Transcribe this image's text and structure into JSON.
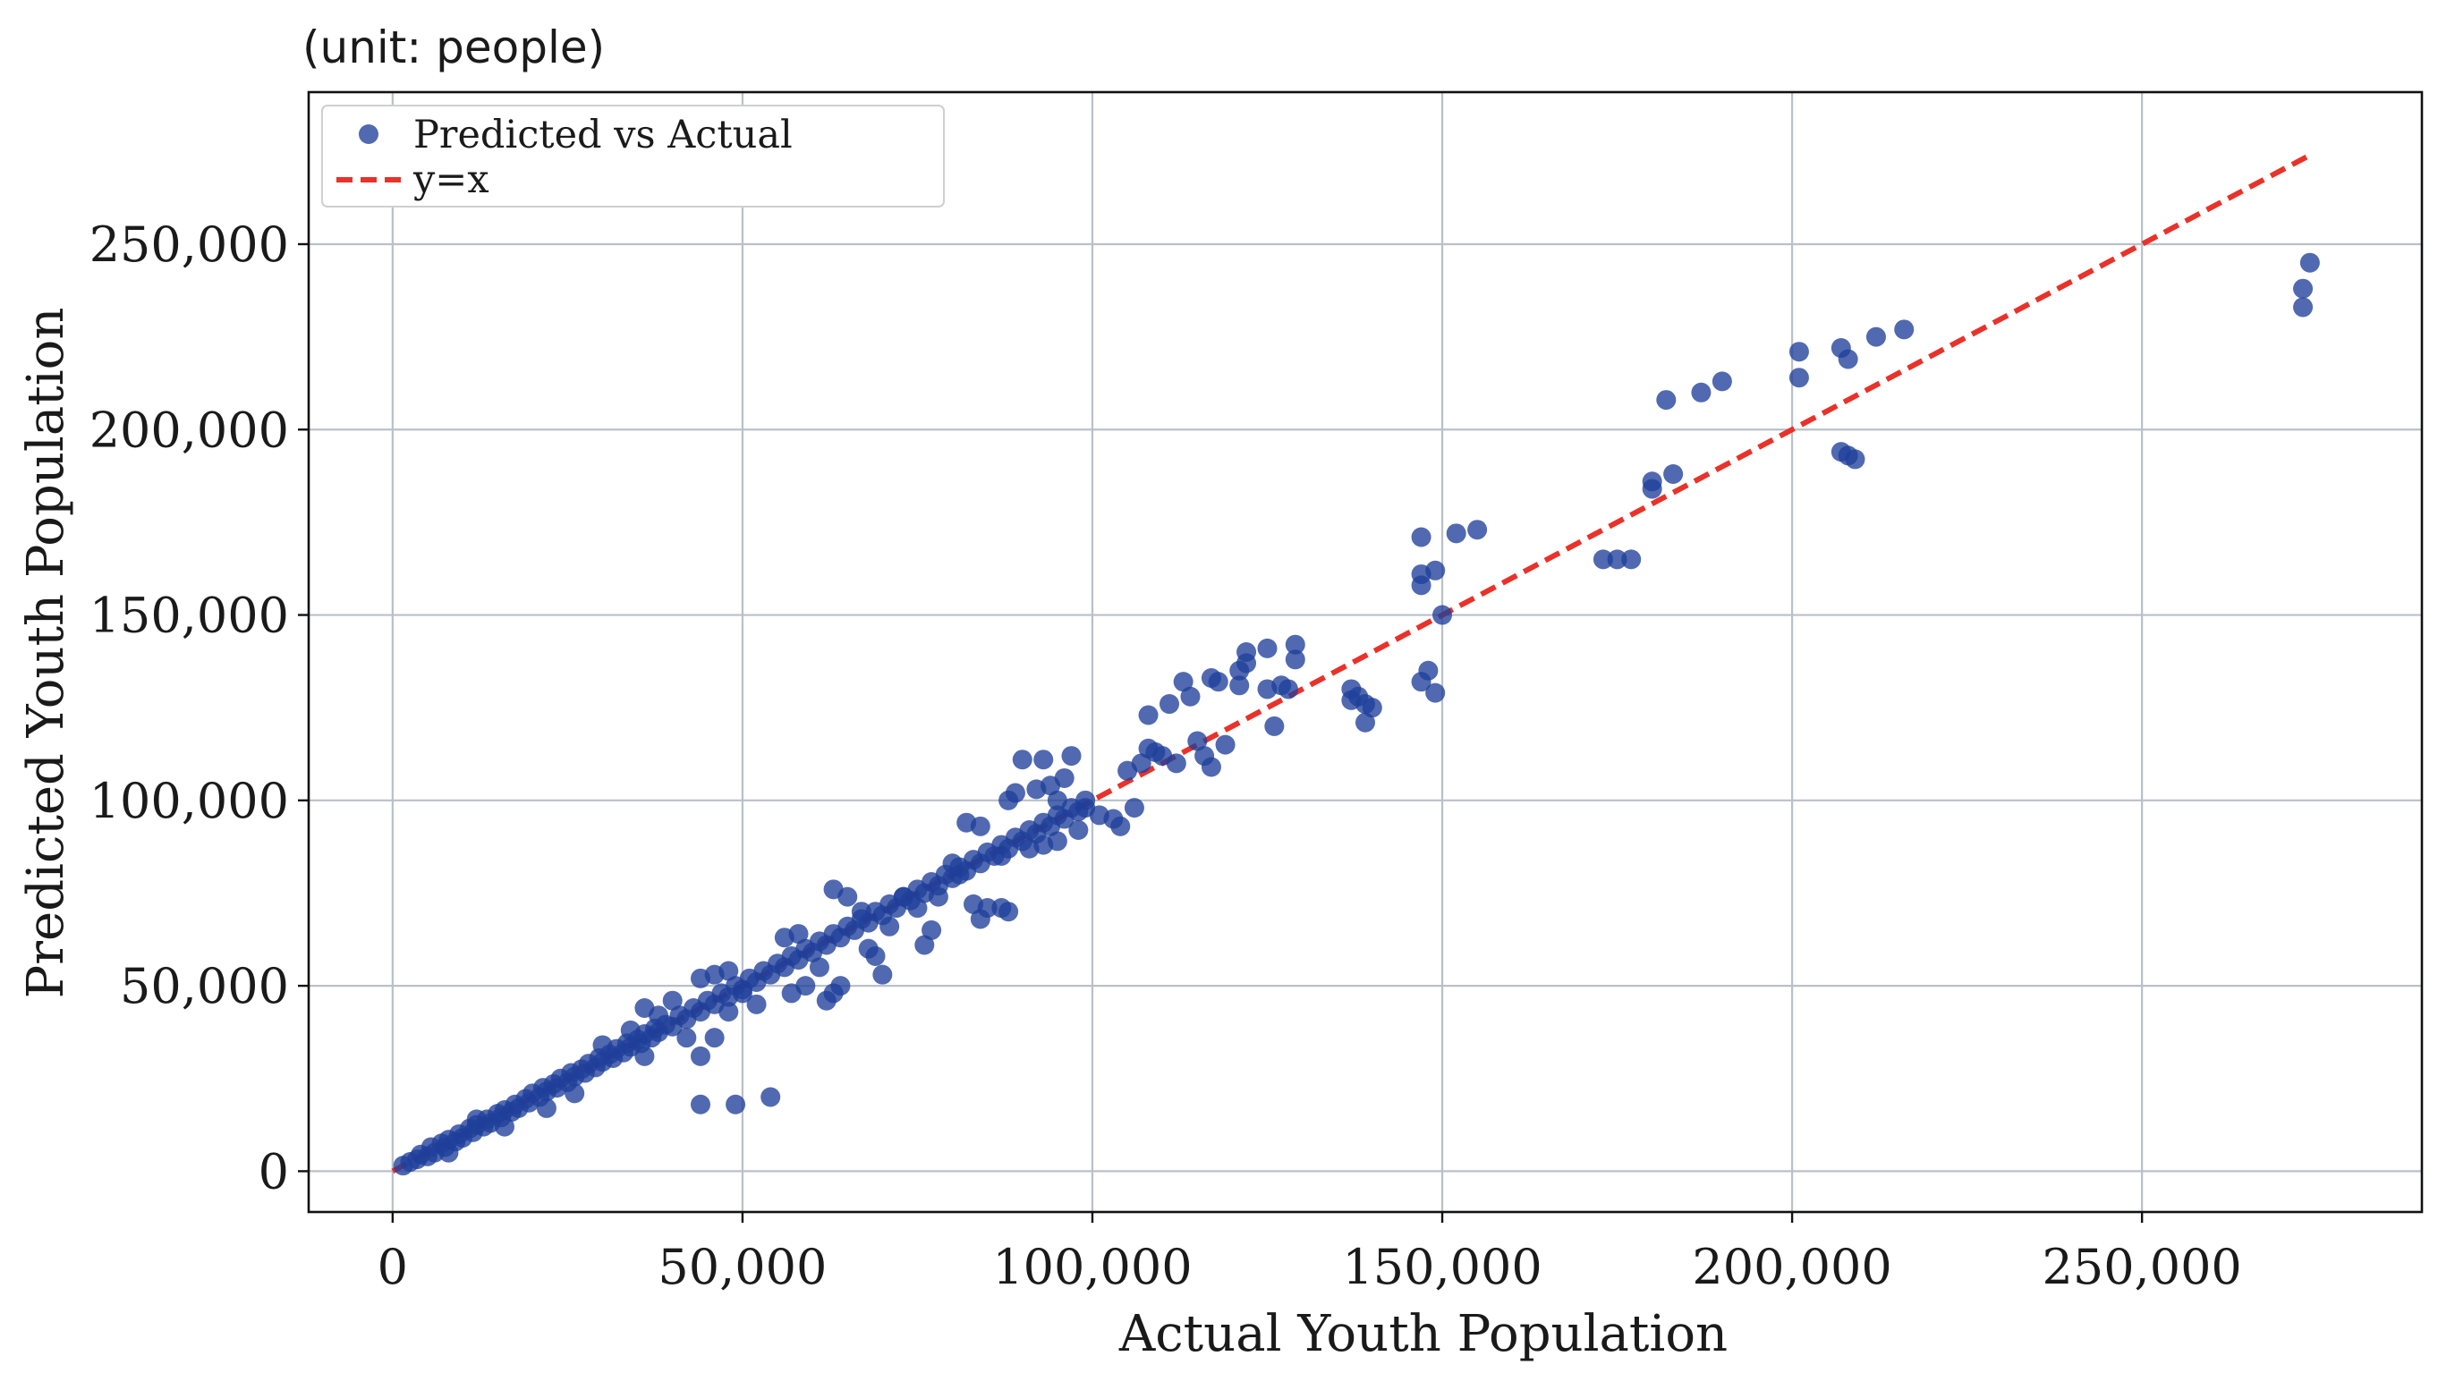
{
  "unit_note": "(unit: people)",
  "chart_data": {
    "type": "scatter",
    "title": "",
    "xlabel": "Actual Youth Population",
    "ylabel": "Predicted Youth Population",
    "xlim": [
      -12000,
      290000
    ],
    "ylim": [
      -11000,
      291000
    ],
    "grid": true,
    "legend_position": "top-left",
    "xticks": [
      0,
      50000,
      100000,
      150000,
      200000,
      250000
    ],
    "xtick_labels": [
      "0",
      "50,000",
      "100,000",
      "150,000",
      "200,000",
      "250,000"
    ],
    "yticks": [
      0,
      50000,
      100000,
      150000,
      200000,
      250000
    ],
    "ytick_labels": [
      "0",
      "50,000",
      "100,000",
      "150,000",
      "200,000",
      "250,000"
    ],
    "colors": {
      "points": "#1f3f9a",
      "reference_line": "#e8322a"
    },
    "series": [
      {
        "name": "Predicted vs Actual",
        "kind": "scatter",
        "points": [
          [
            1500,
            1500
          ],
          [
            2500,
            2500
          ],
          [
            3500,
            3200
          ],
          [
            4000,
            4500
          ],
          [
            5000,
            4000
          ],
          [
            5500,
            6500
          ],
          [
            6000,
            5000
          ],
          [
            7000,
            7500
          ],
          [
            7500,
            6500
          ],
          [
            8000,
            8500
          ],
          [
            9000,
            8000
          ],
          [
            9500,
            10000
          ],
          [
            10000,
            9000
          ],
          [
            11000,
            11500
          ],
          [
            11500,
            10500
          ],
          [
            12000,
            12500
          ],
          [
            13000,
            12000
          ],
          [
            13500,
            14000
          ],
          [
            14000,
            13000
          ],
          [
            15000,
            15500
          ],
          [
            15500,
            14500
          ],
          [
            16000,
            16500
          ],
          [
            17000,
            16000
          ],
          [
            17500,
            18000
          ],
          [
            18000,
            17000
          ],
          [
            19000,
            19500
          ],
          [
            19500,
            18500
          ],
          [
            20000,
            21000
          ],
          [
            21000,
            20000
          ],
          [
            21500,
            22500
          ],
          [
            22000,
            21500
          ],
          [
            23000,
            23500
          ],
          [
            23500,
            22500
          ],
          [
            24000,
            25000
          ],
          [
            25000,
            24000
          ],
          [
            25500,
            26500
          ],
          [
            26000,
            25500
          ],
          [
            27000,
            27500
          ],
          [
            27500,
            26500
          ],
          [
            28000,
            29000
          ],
          [
            29000,
            28000
          ],
          [
            29500,
            30500
          ],
          [
            30000,
            29500
          ],
          [
            31000,
            31500
          ],
          [
            31500,
            30500
          ],
          [
            32000,
            33000
          ],
          [
            33000,
            32000
          ],
          [
            33500,
            34500
          ],
          [
            34000,
            33500
          ],
          [
            35000,
            35500
          ],
          [
            35500,
            34500
          ],
          [
            36000,
            37000
          ],
          [
            37000,
            36000
          ],
          [
            37500,
            38500
          ],
          [
            38000,
            37500
          ],
          [
            39000,
            39500
          ],
          [
            40000,
            39000
          ],
          [
            41000,
            42000
          ],
          [
            42000,
            41000
          ],
          [
            43000,
            44000
          ],
          [
            44000,
            43000
          ],
          [
            45000,
            46000
          ],
          [
            46000,
            45000
          ],
          [
            47000,
            48000
          ],
          [
            48000,
            47000
          ],
          [
            49000,
            50000
          ],
          [
            50000,
            49000
          ],
          [
            51000,
            52000
          ],
          [
            52000,
            51000
          ],
          [
            53000,
            54000
          ],
          [
            54000,
            53000
          ],
          [
            55000,
            56000
          ],
          [
            56000,
            55000
          ],
          [
            57000,
            58000
          ],
          [
            58000,
            57000
          ],
          [
            59000,
            60000
          ],
          [
            60000,
            59000
          ],
          [
            61000,
            62000
          ],
          [
            62000,
            61000
          ],
          [
            63000,
            64000
          ],
          [
            64000,
            63000
          ],
          [
            65000,
            66000
          ],
          [
            66000,
            65000
          ],
          [
            67000,
            68000
          ],
          [
            68000,
            67000
          ],
          [
            69000,
            70000
          ],
          [
            70000,
            69000
          ],
          [
            71000,
            72000
          ],
          [
            72000,
            71000
          ],
          [
            73000,
            74000
          ],
          [
            74000,
            73000
          ],
          [
            75000,
            76000
          ],
          [
            76000,
            75000
          ],
          [
            77000,
            78000
          ],
          [
            78000,
            77000
          ],
          [
            79000,
            80000
          ],
          [
            80000,
            79000
          ],
          [
            81000,
            82000
          ],
          [
            82000,
            81000
          ],
          [
            83000,
            84000
          ],
          [
            84000,
            83000
          ],
          [
            85000,
            86000
          ],
          [
            86000,
            85000
          ],
          [
            87000,
            88000
          ],
          [
            88000,
            87000
          ],
          [
            89000,
            90000
          ],
          [
            90000,
            89000
          ],
          [
            91000,
            92000
          ],
          [
            92000,
            91000
          ],
          [
            93000,
            94000
          ],
          [
            94000,
            93000
          ],
          [
            95000,
            96000
          ],
          [
            96000,
            95000
          ],
          [
            97000,
            98000
          ],
          [
            98000,
            97000
          ],
          [
            99000,
            100000
          ],
          [
            8000,
            5000
          ],
          [
            12000,
            14000
          ],
          [
            16000,
            12000
          ],
          [
            22000,
            17000
          ],
          [
            26000,
            21000
          ],
          [
            30000,
            34000
          ],
          [
            34000,
            38000
          ],
          [
            36000,
            31000
          ],
          [
            38000,
            42000
          ],
          [
            42000,
            36000
          ],
          [
            44000,
            31000
          ],
          [
            46000,
            36000
          ],
          [
            48000,
            43000
          ],
          [
            36000,
            44000
          ],
          [
            40000,
            46000
          ],
          [
            44000,
            52000
          ],
          [
            46000,
            53000
          ],
          [
            48000,
            54000
          ],
          [
            50000,
            48000
          ],
          [
            52000,
            45000
          ],
          [
            44000,
            18000
          ],
          [
            49000,
            18000
          ],
          [
            54000,
            20000
          ],
          [
            56000,
            63000
          ],
          [
            58000,
            64000
          ],
          [
            57000,
            48000
          ],
          [
            59000,
            50000
          ],
          [
            61000,
            55000
          ],
          [
            62000,
            46000
          ],
          [
            63000,
            48000
          ],
          [
            64000,
            50000
          ],
          [
            63000,
            76000
          ],
          [
            65000,
            74000
          ],
          [
            67000,
            70000
          ],
          [
            68000,
            60000
          ],
          [
            69000,
            58000
          ],
          [
            70000,
            53000
          ],
          [
            71000,
            66000
          ],
          [
            73000,
            74000
          ],
          [
            75000,
            71000
          ],
          [
            76000,
            61000
          ],
          [
            77000,
            65000
          ],
          [
            78000,
            74000
          ],
          [
            80000,
            83000
          ],
          [
            81000,
            80000
          ],
          [
            82000,
            94000
          ],
          [
            84000,
            93000
          ],
          [
            83000,
            72000
          ],
          [
            84000,
            68000
          ],
          [
            85000,
            71000
          ],
          [
            87000,
            71000
          ],
          [
            88000,
            70000
          ],
          [
            87000,
            85000
          ],
          [
            88000,
            100000
          ],
          [
            89000,
            102000
          ],
          [
            90000,
            111000
          ],
          [
            92000,
            103000
          ],
          [
            93000,
            111000
          ],
          [
            94000,
            104000
          ],
          [
            95000,
            100000
          ],
          [
            96000,
            106000
          ],
          [
            97000,
            112000
          ],
          [
            98000,
            92000
          ],
          [
            95000,
            89000
          ],
          [
            93000,
            88000
          ],
          [
            91000,
            87000
          ],
          [
            99000,
            98000
          ],
          [
            101000,
            96000
          ],
          [
            103000,
            95000
          ],
          [
            104000,
            93000
          ],
          [
            106000,
            98000
          ],
          [
            105000,
            108000
          ],
          [
            107000,
            110000
          ],
          [
            108000,
            114000
          ],
          [
            109000,
            113000
          ],
          [
            110000,
            112000
          ],
          [
            108000,
            123000
          ],
          [
            111000,
            126000
          ],
          [
            112000,
            110000
          ],
          [
            113000,
            132000
          ],
          [
            114000,
            128000
          ],
          [
            115000,
            116000
          ],
          [
            116000,
            112000
          ],
          [
            117000,
            109000
          ],
          [
            117000,
            133000
          ],
          [
            118000,
            132000
          ],
          [
            119000,
            115000
          ],
          [
            121000,
            131000
          ],
          [
            121000,
            135000
          ],
          [
            122000,
            137000
          ],
          [
            122000,
            140000
          ],
          [
            125000,
            130000
          ],
          [
            125000,
            141000
          ],
          [
            126000,
            120000
          ],
          [
            127000,
            131000
          ],
          [
            128000,
            130000
          ],
          [
            129000,
            142000
          ],
          [
            129000,
            138000
          ],
          [
            137000,
            130000
          ],
          [
            137000,
            127000
          ],
          [
            138000,
            128000
          ],
          [
            139000,
            126000
          ],
          [
            139000,
            121000
          ],
          [
            140000,
            125000
          ],
          [
            147000,
            158000
          ],
          [
            147000,
            161000
          ],
          [
            147000,
            171000
          ],
          [
            147000,
            132000
          ],
          [
            148000,
            135000
          ],
          [
            149000,
            129000
          ],
          [
            149000,
            162000
          ],
          [
            150000,
            150000
          ],
          [
            152000,
            172000
          ],
          [
            155000,
            173000
          ],
          [
            173000,
            165000
          ],
          [
            175000,
            165000
          ],
          [
            177000,
            165000
          ],
          [
            180000,
            184000
          ],
          [
            180000,
            186000
          ],
          [
            182000,
            208000
          ],
          [
            183000,
            188000
          ],
          [
            187000,
            210000
          ],
          [
            190000,
            213000
          ],
          [
            201000,
            221000
          ],
          [
            201000,
            214000
          ],
          [
            207000,
            222000
          ],
          [
            208000,
            219000
          ],
          [
            207000,
            194000
          ],
          [
            208000,
            193000
          ],
          [
            209000,
            192000
          ],
          [
            212000,
            225000
          ],
          [
            216000,
            227000
          ],
          [
            273000,
            233000
          ],
          [
            273000,
            238000
          ],
          [
            274000,
            245000
          ]
        ]
      },
      {
        "name": "y=x",
        "kind": "line",
        "style": "dashed",
        "x": [
          0,
          274000
        ],
        "y": [
          0,
          274000
        ]
      }
    ]
  }
}
